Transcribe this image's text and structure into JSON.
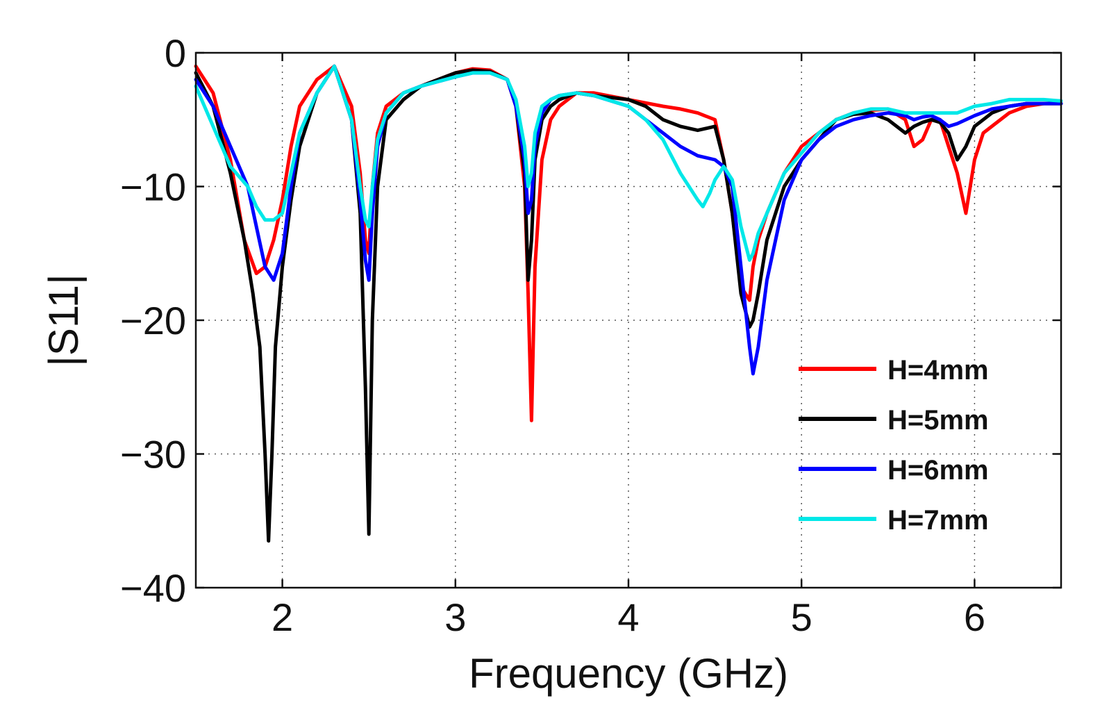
{
  "chart_data": {
    "type": "line",
    "title": "",
    "xlabel": "Frequency (GHz)",
    "ylabel": "|S11|",
    "xlim": [
      1.5,
      6.5
    ],
    "ylim": [
      -40,
      0
    ],
    "xticks": [
      2,
      3,
      4,
      5,
      6
    ],
    "yticks": [
      0,
      -10,
      -20,
      -30,
      -40
    ],
    "xtick_labels": [
      "2",
      "3",
      "4",
      "5",
      "6"
    ],
    "ytick_labels": [
      "0",
      "−10",
      "−20",
      "−30",
      "−40"
    ],
    "grid": true,
    "legend_position": "bottom-right",
    "series": [
      {
        "name": "H=4mm",
        "color": "#ff0000",
        "x": [
          1.5,
          1.6,
          1.7,
          1.78,
          1.85,
          1.9,
          1.95,
          2.0,
          2.05,
          2.1,
          2.2,
          2.3,
          2.4,
          2.45,
          2.48,
          2.5,
          2.52,
          2.55,
          2.6,
          2.7,
          2.8,
          3.0,
          3.1,
          3.2,
          3.3,
          3.35,
          3.4,
          3.42,
          3.44,
          3.46,
          3.5,
          3.55,
          3.6,
          3.7,
          3.8,
          4.0,
          4.2,
          4.3,
          4.4,
          4.5,
          4.55,
          4.6,
          4.65,
          4.7,
          4.72,
          4.75,
          4.8,
          4.9,
          5.0,
          5.1,
          5.2,
          5.3,
          5.4,
          5.5,
          5.6,
          5.65,
          5.7,
          5.75,
          5.8,
          5.85,
          5.9,
          5.95,
          6.0,
          6.05,
          6.1,
          6.2,
          6.3,
          6.4,
          6.5
        ],
        "values": [
          -1,
          -3,
          -8,
          -14,
          -16.5,
          -16,
          -14,
          -11,
          -7,
          -4,
          -2,
          -1,
          -4,
          -9,
          -14,
          -15,
          -10,
          -6,
          -4,
          -3,
          -2.5,
          -1.5,
          -1.2,
          -1.3,
          -2,
          -4,
          -10,
          -18,
          -27.5,
          -16,
          -8,
          -5,
          -4,
          -3,
          -3,
          -3.5,
          -4,
          -4.2,
          -4.5,
          -5,
          -8,
          -12,
          -17.5,
          -18.5,
          -16,
          -14,
          -12,
          -9,
          -7,
          -6,
          -5,
          -4.5,
          -4.3,
          -4.2,
          -5,
          -7,
          -6.5,
          -5,
          -5,
          -7,
          -9,
          -12,
          -8,
          -6,
          -5.5,
          -4.5,
          -4,
          -3.8,
          -3.8
        ]
      },
      {
        "name": "H=5mm",
        "color": "#000000",
        "x": [
          1.5,
          1.6,
          1.7,
          1.78,
          1.83,
          1.87,
          1.9,
          1.92,
          1.94,
          1.96,
          2.0,
          2.05,
          2.1,
          2.2,
          2.3,
          2.4,
          2.45,
          2.48,
          2.5,
          2.52,
          2.55,
          2.6,
          2.7,
          2.8,
          3.0,
          3.1,
          3.2,
          3.3,
          3.35,
          3.4,
          3.42,
          3.44,
          3.46,
          3.5,
          3.55,
          3.6,
          3.7,
          3.8,
          4.0,
          4.1,
          4.2,
          4.3,
          4.4,
          4.5,
          4.55,
          4.6,
          4.65,
          4.7,
          4.72,
          4.75,
          4.8,
          4.9,
          5.0,
          5.1,
          5.2,
          5.3,
          5.4,
          5.5,
          5.6,
          5.65,
          5.7,
          5.75,
          5.8,
          5.85,
          5.9,
          5.95,
          6.0,
          6.05,
          6.1,
          6.2,
          6.3,
          6.4,
          6.5
        ],
        "values": [
          -1.5,
          -4,
          -9,
          -14,
          -18,
          -22,
          -30,
          -36.5,
          -30,
          -22,
          -16,
          -11,
          -7,
          -3,
          -1,
          -5,
          -12,
          -25,
          -36,
          -20,
          -10,
          -5,
          -3.5,
          -2.5,
          -1.5,
          -1.3,
          -1.4,
          -2,
          -4,
          -9,
          -17,
          -14,
          -8,
          -5,
          -4,
          -3.5,
          -3,
          -3.2,
          -3.5,
          -4,
          -5,
          -5.5,
          -5.8,
          -5.5,
          -8,
          -12,
          -18,
          -20.5,
          -20,
          -18,
          -14,
          -10,
          -8,
          -6.5,
          -5,
          -4.6,
          -4.5,
          -5,
          -6,
          -5.5,
          -5.2,
          -5,
          -5.2,
          -6,
          -8,
          -7,
          -5.5,
          -5,
          -4.5,
          -4,
          -3.8,
          -3.8,
          -3.8
        ]
      },
      {
        "name": "H=6mm",
        "color": "#0000ff",
        "x": [
          1.5,
          1.6,
          1.7,
          1.8,
          1.85,
          1.9,
          1.95,
          2.0,
          2.05,
          2.1,
          2.2,
          2.3,
          2.4,
          2.45,
          2.48,
          2.5,
          2.52,
          2.55,
          2.6,
          2.7,
          2.8,
          3.0,
          3.1,
          3.2,
          3.3,
          3.35,
          3.4,
          3.42,
          3.44,
          3.46,
          3.5,
          3.55,
          3.6,
          3.7,
          3.8,
          4.0,
          4.1,
          4.2,
          4.3,
          4.4,
          4.5,
          4.55,
          4.6,
          4.65,
          4.7,
          4.72,
          4.75,
          4.8,
          4.9,
          5.0,
          5.1,
          5.2,
          5.3,
          5.4,
          5.5,
          5.6,
          5.65,
          5.7,
          5.75,
          5.8,
          5.85,
          5.9,
          6.0,
          6.1,
          6.2,
          6.3,
          6.4,
          6.5
        ],
        "values": [
          -2,
          -4,
          -7,
          -10,
          -13,
          -16,
          -17,
          -15,
          -10,
          -6,
          -3,
          -1,
          -5,
          -11,
          -15.5,
          -17,
          -12,
          -7,
          -4.5,
          -3,
          -2.5,
          -1.8,
          -1.5,
          -1.5,
          -2,
          -4,
          -8,
          -12,
          -11,
          -7,
          -4.5,
          -3.5,
          -3.2,
          -3,
          -3.2,
          -4,
          -5,
          -6,
          -7,
          -7.7,
          -8,
          -8.5,
          -10,
          -16,
          -22,
          -24,
          -22,
          -17,
          -11,
          -8,
          -6.5,
          -5.5,
          -5,
          -4.7,
          -4.5,
          -4.7,
          -5,
          -4.8,
          -4.7,
          -5,
          -5.5,
          -5.3,
          -4.7,
          -4.2,
          -4,
          -3.8,
          -3.8,
          -3.8
        ]
      },
      {
        "name": "H=7mm",
        "color": "#00e8e8",
        "x": [
          1.5,
          1.6,
          1.7,
          1.8,
          1.85,
          1.9,
          1.95,
          2.0,
          2.05,
          2.1,
          2.2,
          2.3,
          2.4,
          2.45,
          2.48,
          2.5,
          2.52,
          2.55,
          2.6,
          2.7,
          2.8,
          3.0,
          3.1,
          3.2,
          3.3,
          3.35,
          3.4,
          3.42,
          3.44,
          3.46,
          3.5,
          3.55,
          3.6,
          3.7,
          3.8,
          4.0,
          4.1,
          4.2,
          4.3,
          4.4,
          4.43,
          4.47,
          4.5,
          4.55,
          4.6,
          4.65,
          4.7,
          4.72,
          4.75,
          4.8,
          4.9,
          5.0,
          5.1,
          5.2,
          5.3,
          5.4,
          5.5,
          5.6,
          5.7,
          5.8,
          5.9,
          6.0,
          6.1,
          6.2,
          6.3,
          6.4,
          6.5
        ],
        "values": [
          -2.5,
          -5.5,
          -8.5,
          -10,
          -11.5,
          -12.5,
          -12.5,
          -12,
          -9,
          -6,
          -3,
          -1,
          -5,
          -10,
          -12.5,
          -13,
          -10,
          -6.5,
          -4.5,
          -3,
          -2.5,
          -1.8,
          -1.5,
          -1.5,
          -2,
          -3.5,
          -7,
          -10,
          -9,
          -6,
          -4,
          -3.5,
          -3.2,
          -3,
          -3.2,
          -4,
          -5,
          -6.5,
          -9,
          -11,
          -11.5,
          -10.5,
          -9.5,
          -8.5,
          -9.5,
          -13,
          -15.5,
          -15,
          -13.5,
          -12,
          -9,
          -7.5,
          -6,
          -5,
          -4.5,
          -4.2,
          -4.2,
          -4.5,
          -4.5,
          -4.5,
          -4.5,
          -4,
          -3.8,
          -3.5,
          -3.5,
          -3.5,
          -3.6
        ]
      }
    ]
  }
}
